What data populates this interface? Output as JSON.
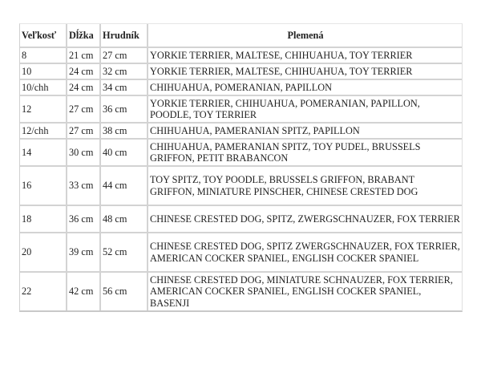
{
  "table": {
    "headers": [
      "Veľkosť",
      "Dĺžka",
      "Hrudník",
      "Plemená"
    ],
    "rows": [
      [
        "8",
        "21 cm",
        "27 cm",
        "YORKIE TERRIER, MALTESE, CHIHUAHUA, TOY TERRIER"
      ],
      [
        "10",
        "24 cm",
        "32 cm",
        "YORKIE TERRIER, MALTESE, CHIHUAHUA, TOY TERRIER"
      ],
      [
        "10/chh",
        "24 cm",
        "34 cm",
        "CHIHUAHUA, POMERANIAN, PAPILLON"
      ],
      [
        "12",
        "27 cm",
        "36 cm",
        "YORKIE TERRIER, CHIHUAHUA, POMERANIAN, PAPILLON, POODLE, TOY TERRIER"
      ],
      [
        "12/chh",
        "27 cm",
        "38 cm",
        "CHIHUAHUA, PAMERANIAN SPITZ, PAPILLON"
      ],
      [
        "14",
        "30 cm",
        "40 cm",
        "CHIHUAHUA, PAMERANIAN SPITZ, TOY PUDEL, BRUSSELS GRIFFON, PETIT BRABANCON"
      ],
      [
        "16",
        "33 cm",
        "44 cm",
        "TOY SPITZ, TOY POODLE, BRUSSELS GRIFFON, BRABANT GRIFFON, MINIATURE PINSCHER, CHINESE CRESTED DOG"
      ],
      [
        "18",
        "36 cm",
        "48 cm",
        "CHINESE CRESTED DOG, SPITZ, ZWERGSCHNAUZER, FOX TERRIER"
      ],
      [
        "20",
        "39 cm",
        "52 cm",
        "CHINESE CRESTED DOG, SPITZ ZWERGSCHNAUZER, FOX TERRIER, AMERICAN COCKER SPANIEL, ENGLISH COCKER SPANIEL"
      ],
      [
        "22",
        "42 cm",
        "56 cm",
        "CHINESE CRESTED DOG, MINIATURE SCHNAUZER, FOX TERRIER, AMERICAN COCKER SPANIEL, ENGLISH COCKER SPANIEL, BASENJI"
      ]
    ]
  }
}
